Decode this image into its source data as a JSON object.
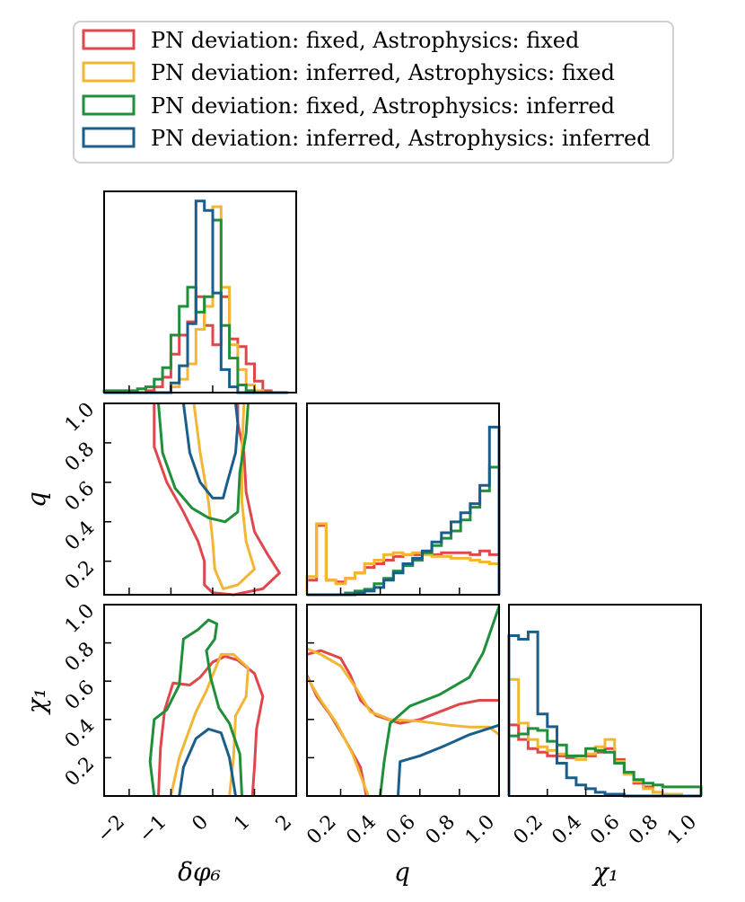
{
  "colors": {
    "red": "#e0474c",
    "yellow": "#f2b635",
    "green": "#1f8f3a",
    "blue": "#1a5e8c"
  },
  "legend": {
    "items": [
      {
        "label": "PN deviation: fixed, Astrophysics: fixed",
        "color": "#e0474c"
      },
      {
        "label": "PN deviation: inferred, Astrophysics: fixed",
        "color": "#f2b635"
      },
      {
        "label": "PN deviation: fixed, Astrophysics: inferred",
        "color": "#1f8f3a"
      },
      {
        "label": "PN deviation: inferred, Astrophysics: inferred",
        "color": "#1a5e8c"
      }
    ]
  },
  "axes": {
    "dphi": {
      "label": "δφ₆",
      "range": [
        -2.6,
        2.0
      ],
      "ticks": [
        -2,
        -1,
        0,
        1,
        2
      ],
      "tick_labels": [
        "−2",
        "−1",
        "0",
        "1",
        "2"
      ]
    },
    "q": {
      "label": "q",
      "range": [
        0.03,
        1.0
      ],
      "ticks": [
        0.2,
        0.4,
        0.6,
        0.8,
        1.0
      ],
      "tick_labels": [
        "0.2",
        "0.4",
        "0.6",
        "0.8",
        "1.0"
      ]
    },
    "chi1": {
      "label": "χ₁",
      "range": [
        0.0,
        1.0
      ],
      "ticks": [
        0.2,
        0.4,
        0.6,
        0.8,
        1.0
      ],
      "tick_labels": [
        "0.2",
        "0.4",
        "0.6",
        "0.8",
        "1.0"
      ]
    }
  },
  "chart_data": {
    "type": "corner",
    "parameters": [
      "δφ₆",
      "q",
      "χ₁"
    ],
    "series_order": [
      "red",
      "yellow",
      "green",
      "blue"
    ],
    "histograms": {
      "dphi": {
        "bin_edges": [
          -2.6,
          -2.4,
          -2.2,
          -2.0,
          -1.8,
          -1.6,
          -1.4,
          -1.2,
          -1.0,
          -0.8,
          -0.6,
          -0.4,
          -0.2,
          0.0,
          0.2,
          0.4,
          0.6,
          0.8,
          1.0,
          1.2,
          1.4,
          1.6,
          1.8
        ],
        "red": [
          0,
          0,
          0,
          0,
          0,
          0.01,
          0.03,
          0.08,
          0.2,
          0.3,
          0.37,
          0.5,
          0.35,
          0.25,
          0.5,
          0.28,
          0.24,
          0.15,
          0.06,
          0.01,
          0,
          0
        ],
        "yellow": [
          0,
          0,
          0,
          0,
          0,
          0,
          0,
          0,
          0.03,
          0.07,
          0.15,
          0.33,
          0.45,
          0.97,
          0.55,
          0.25,
          0.12,
          0.04,
          0.01,
          0,
          0,
          0
        ],
        "green": [
          0.01,
          0.01,
          0.01,
          0.01,
          0.02,
          0.03,
          0.07,
          0.13,
          0.3,
          0.45,
          0.55,
          0.42,
          0.5,
          0.9,
          0.35,
          0.18,
          0.04,
          0.01,
          0,
          0,
          0,
          0
        ],
        "blue": [
          0,
          0,
          0,
          0,
          0,
          0,
          0,
          0,
          0.05,
          0.14,
          0.36,
          1.0,
          0.95,
          0.52,
          0.12,
          0.03,
          0,
          0,
          0,
          0,
          0,
          0
        ]
      },
      "q": {
        "bin_edges": [
          0.03,
          0.0785,
          0.127,
          0.1755,
          0.224,
          0.2725,
          0.321,
          0.3695,
          0.418,
          0.4665,
          0.515,
          0.5635,
          0.612,
          0.6605,
          0.709,
          0.7575,
          0.806,
          0.8545,
          0.903,
          0.9515,
          1.0
        ],
        "red": [
          0.08,
          0.38,
          0.08,
          0.07,
          0.09,
          0.12,
          0.15,
          0.17,
          0.19,
          0.21,
          0.22,
          0.22,
          0.23,
          0.22,
          0.23,
          0.23,
          0.23,
          0.22,
          0.24,
          0.22
        ],
        "yellow": [
          0.1,
          0.39,
          0.08,
          0.06,
          0.09,
          0.12,
          0.17,
          0.19,
          0.22,
          0.23,
          0.22,
          0.23,
          0.22,
          0.21,
          0.21,
          0.2,
          0.2,
          0.19,
          0.18,
          0.17
        ],
        "green": [
          0.0,
          0.0,
          0.0,
          0.0,
          0.01,
          0.02,
          0.03,
          0.06,
          0.09,
          0.13,
          0.16,
          0.19,
          0.23,
          0.27,
          0.31,
          0.35,
          0.41,
          0.48,
          0.57,
          0.7
        ],
        "blue": [
          0.0,
          0.0,
          0.0,
          0.0,
          0.0,
          0.01,
          0.02,
          0.04,
          0.08,
          0.12,
          0.17,
          0.2,
          0.24,
          0.29,
          0.34,
          0.4,
          0.45,
          0.5,
          0.6,
          0.92
        ]
      },
      "chi1": {
        "bin_edges": [
          0.0,
          0.05,
          0.1,
          0.15,
          0.2,
          0.25,
          0.3,
          0.35,
          0.4,
          0.45,
          0.5,
          0.55,
          0.6,
          0.65,
          0.7,
          0.75,
          0.8,
          0.85,
          0.9,
          0.95,
          1.0
        ],
        "red": [
          0.39,
          0.31,
          0.26,
          0.24,
          0.22,
          0.22,
          0.21,
          0.22,
          0.22,
          0.24,
          0.26,
          0.2,
          0.13,
          0.07,
          0.05,
          0.02,
          0.01,
          0,
          0,
          0
        ],
        "yellow": [
          0.64,
          0.4,
          0.31,
          0.27,
          0.25,
          0.23,
          0.22,
          0.2,
          0.23,
          0.27,
          0.31,
          0.19,
          0.12,
          0.08,
          0.04,
          0.02,
          0.01,
          0.01,
          0,
          0
        ],
        "green": [
          0.33,
          0.34,
          0.37,
          0.36,
          0.3,
          0.28,
          0.22,
          0.22,
          0.26,
          0.25,
          0.24,
          0.18,
          0.13,
          0.09,
          0.07,
          0.06,
          0.05,
          0.05,
          0.05,
          0.05
        ],
        "blue": [
          0.88,
          0.86,
          0.9,
          0.45,
          0.38,
          0.18,
          0.1,
          0.06,
          0.04,
          0.02,
          0.01,
          0.01,
          0,
          0,
          0,
          0,
          0,
          0,
          0,
          0
        ]
      }
    },
    "contours": {
      "q_vs_dphi": {
        "red": [
          [
            -1.4,
            1.0
          ],
          [
            -1.4,
            0.78
          ],
          [
            -1.1,
            0.6
          ],
          [
            -0.7,
            0.45
          ],
          [
            -0.35,
            0.3
          ],
          [
            -0.2,
            0.2
          ],
          [
            -0.2,
            0.08
          ],
          [
            0.0,
            0.04
          ],
          [
            0.5,
            0.03
          ],
          [
            1.2,
            0.06
          ],
          [
            1.6,
            0.14
          ],
          [
            1.3,
            0.24
          ],
          [
            1.0,
            0.35
          ],
          [
            0.8,
            0.55
          ],
          [
            0.75,
            0.75
          ],
          [
            0.6,
            0.9
          ],
          [
            0.6,
            1.0
          ]
        ],
        "yellow": [
          [
            -0.45,
            1.0
          ],
          [
            -0.3,
            0.75
          ],
          [
            -0.1,
            0.5
          ],
          [
            0.0,
            0.3
          ],
          [
            0.05,
            0.16
          ],
          [
            0.25,
            0.06
          ],
          [
            0.6,
            0.08
          ],
          [
            1.0,
            0.16
          ],
          [
            0.8,
            0.3
          ],
          [
            0.7,
            0.5
          ],
          [
            0.7,
            0.75
          ],
          [
            0.75,
            1.0
          ]
        ],
        "green": [
          [
            -1.3,
            1.0
          ],
          [
            -1.2,
            0.75
          ],
          [
            -0.9,
            0.57
          ],
          [
            -0.5,
            0.47
          ],
          [
            -0.1,
            0.42
          ],
          [
            0.3,
            0.4
          ],
          [
            0.6,
            0.45
          ],
          [
            0.65,
            0.65
          ],
          [
            0.8,
            0.85
          ],
          [
            0.85,
            1.0
          ]
        ],
        "blue": [
          [
            -0.7,
            1.0
          ],
          [
            -0.55,
            0.75
          ],
          [
            -0.3,
            0.6
          ],
          [
            0.0,
            0.52
          ],
          [
            0.25,
            0.52
          ],
          [
            0.35,
            0.6
          ],
          [
            0.55,
            0.75
          ],
          [
            0.6,
            0.9
          ],
          [
            0.55,
            1.0
          ]
        ]
      },
      "chi1_vs_dphi": {
        "red": [
          [
            -1.3,
            0.0
          ],
          [
            -1.25,
            0.25
          ],
          [
            -1.15,
            0.45
          ],
          [
            -0.95,
            0.59
          ],
          [
            -0.55,
            0.58
          ],
          [
            -0.3,
            0.62
          ],
          [
            0.0,
            0.7
          ],
          [
            0.3,
            0.73
          ],
          [
            0.6,
            0.71
          ],
          [
            1.0,
            0.64
          ],
          [
            1.2,
            0.52
          ],
          [
            1.05,
            0.35
          ],
          [
            1.0,
            0.15
          ],
          [
            0.95,
            0.0
          ]
        ],
        "yellow": [
          [
            -1.0,
            0.0
          ],
          [
            -0.8,
            0.2
          ],
          [
            -0.6,
            0.32
          ],
          [
            -0.4,
            0.44
          ],
          [
            -0.15,
            0.55
          ],
          [
            0.2,
            0.74
          ],
          [
            0.5,
            0.74
          ],
          [
            0.85,
            0.67
          ],
          [
            0.8,
            0.52
          ],
          [
            0.55,
            0.42
          ],
          [
            0.5,
            0.2
          ],
          [
            0.4,
            0.0
          ]
        ],
        "green": [
          [
            -1.4,
            0.0
          ],
          [
            -1.5,
            0.18
          ],
          [
            -1.4,
            0.4
          ],
          [
            -1.1,
            0.45
          ],
          [
            -0.8,
            0.58
          ],
          [
            -0.7,
            0.82
          ],
          [
            -0.35,
            0.87
          ],
          [
            -0.1,
            0.92
          ],
          [
            0.1,
            0.9
          ],
          [
            0.05,
            0.82
          ],
          [
            -0.15,
            0.76
          ],
          [
            -0.05,
            0.62
          ],
          [
            0.15,
            0.46
          ],
          [
            0.4,
            0.38
          ],
          [
            0.65,
            0.22
          ],
          [
            0.7,
            0.0
          ]
        ],
        "blue": [
          [
            -0.8,
            0.0
          ],
          [
            -0.7,
            0.15
          ],
          [
            -0.4,
            0.3
          ],
          [
            -0.1,
            0.35
          ],
          [
            0.2,
            0.33
          ],
          [
            0.4,
            0.2
          ],
          [
            0.55,
            0.0
          ]
        ]
      },
      "chi1_vs_q": {
        "red": [
          [
            0.03,
            0.74
          ],
          [
            0.1,
            0.76
          ],
          [
            0.2,
            0.72
          ],
          [
            0.25,
            0.63
          ],
          [
            0.3,
            0.5
          ],
          [
            0.38,
            0.42
          ],
          [
            0.5,
            0.38
          ],
          [
            0.6,
            0.4
          ],
          [
            0.7,
            0.44
          ],
          [
            0.8,
            0.48
          ],
          [
            0.9,
            0.5
          ],
          [
            1.0,
            0.5
          ]
        ],
        "red_lower": [
          [
            0.03,
            0.63
          ],
          [
            0.08,
            0.52
          ],
          [
            0.15,
            0.42
          ],
          [
            0.22,
            0.3
          ],
          [
            0.3,
            0.15
          ],
          [
            0.33,
            0.0
          ]
        ],
        "yellow": [
          [
            0.03,
            0.77
          ],
          [
            0.1,
            0.74
          ],
          [
            0.2,
            0.68
          ],
          [
            0.28,
            0.56
          ],
          [
            0.35,
            0.44
          ],
          [
            0.45,
            0.4
          ],
          [
            0.6,
            0.39
          ],
          [
            0.75,
            0.37
          ],
          [
            0.85,
            0.36
          ],
          [
            0.95,
            0.36
          ],
          [
            1.0,
            0.32
          ]
        ],
        "yellow_lower": [
          [
            0.03,
            0.62
          ],
          [
            0.1,
            0.5
          ],
          [
            0.18,
            0.38
          ],
          [
            0.26,
            0.22
          ],
          [
            0.34,
            0.0
          ]
        ],
        "green": [
          [
            0.4,
            0.0
          ],
          [
            0.42,
            0.18
          ],
          [
            0.45,
            0.38
          ],
          [
            0.55,
            0.47
          ],
          [
            0.7,
            0.53
          ],
          [
            0.85,
            0.62
          ],
          [
            0.92,
            0.75
          ],
          [
            0.97,
            0.9
          ],
          [
            1.0,
            0.99
          ]
        ],
        "blue": [
          [
            0.49,
            0.0
          ],
          [
            0.5,
            0.18
          ],
          [
            0.6,
            0.21
          ],
          [
            0.72,
            0.26
          ],
          [
            0.85,
            0.32
          ],
          [
            1.0,
            0.37
          ]
        ]
      }
    }
  }
}
